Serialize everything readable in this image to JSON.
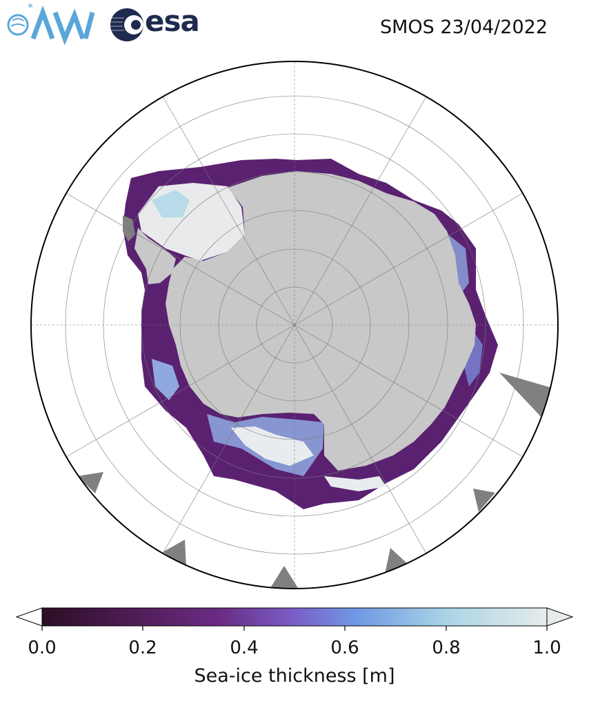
{
  "title": "SMOS 23/04/2022",
  "logos": {
    "awi": "AWI",
    "esa": "esa"
  },
  "colorbar": {
    "label": "Sea-ice thickness [m]",
    "ticks": [
      "0.0",
      "0.2",
      "0.4",
      "0.6",
      "0.8",
      "1.0"
    ],
    "range": [
      0.0,
      1.0
    ],
    "extend": "both",
    "colors": [
      "#2a0f24",
      "#4b1a4e",
      "#6a2b83",
      "#7a5fc9",
      "#6f97e3",
      "#a9d4e6",
      "#e6ecec"
    ]
  },
  "map": {
    "projection": "South Polar Stereographic",
    "land_color": "#c8c8c8",
    "missing_color": "#808080",
    "ocean_color": "#ffffff",
    "gridlines": true
  }
}
